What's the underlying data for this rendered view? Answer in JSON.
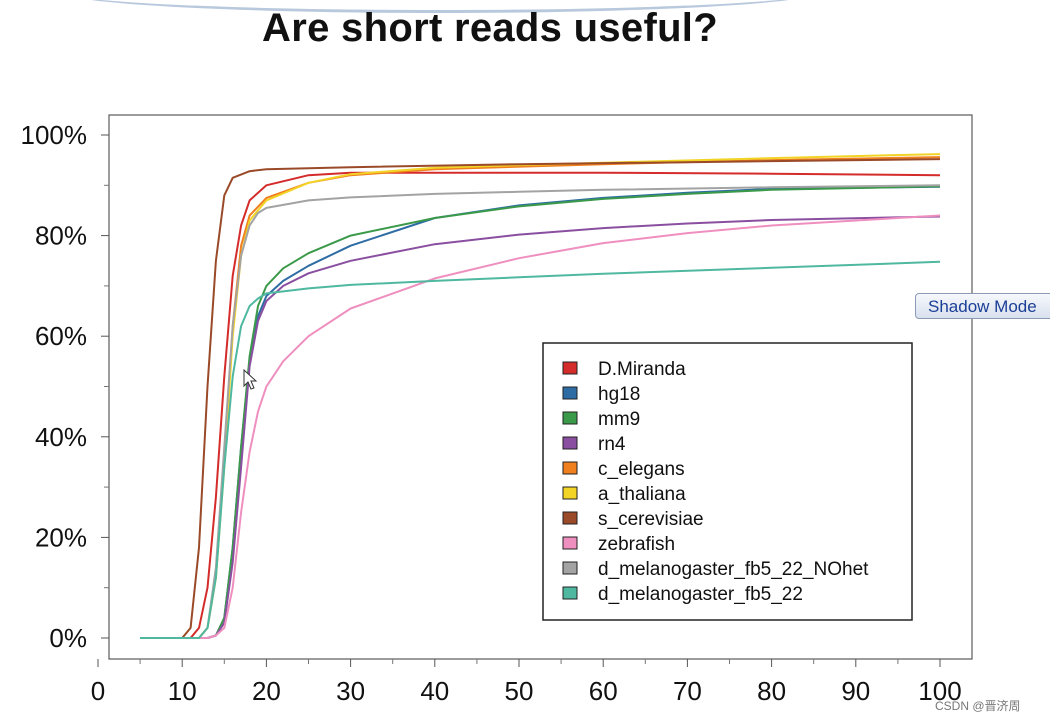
{
  "slide": {
    "title": "Are short reads useful?",
    "overlay_button": "Shadow Mode",
    "watermark": "CSDN @晋济周"
  },
  "chart_data": {
    "type": "line",
    "xlim": [
      0,
      100
    ],
    "ylim": [
      0,
      100
    ],
    "x_ticks": [
      0,
      10,
      20,
      30,
      40,
      50,
      60,
      70,
      80,
      90,
      100
    ],
    "x_tick_labels": [
      "0",
      "10",
      "20",
      "30",
      "40",
      "50",
      "60",
      "70",
      "80",
      "90",
      "100"
    ],
    "y_ticks": [
      0,
      20,
      40,
      60,
      80,
      100
    ],
    "y_tick_labels": [
      "0%",
      "20%",
      "40%",
      "60%",
      "80%",
      "100%"
    ],
    "grid": false,
    "legend_position": "bottom-right",
    "series": [
      {
        "name": "D.Miranda",
        "color": "#d42b2b",
        "points": [
          [
            5,
            0
          ],
          [
            11,
            0
          ],
          [
            12,
            2
          ],
          [
            13,
            10
          ],
          [
            14,
            28
          ],
          [
            15,
            52
          ],
          [
            16,
            72
          ],
          [
            17,
            82
          ],
          [
            18,
            87
          ],
          [
            20,
            90
          ],
          [
            25,
            92
          ],
          [
            30,
            92.5
          ],
          [
            40,
            92.5
          ],
          [
            60,
            92.5
          ],
          [
            80,
            92.3
          ],
          [
            100,
            92
          ]
        ]
      },
      {
        "name": "hg18",
        "color": "#2e6ca4",
        "points": [
          [
            5,
            0
          ],
          [
            13,
            0
          ],
          [
            14,
            0.5
          ],
          [
            15,
            4
          ],
          [
            16,
            18
          ],
          [
            17,
            38
          ],
          [
            18,
            55
          ],
          [
            19,
            64
          ],
          [
            20,
            68
          ],
          [
            22,
            71
          ],
          [
            25,
            74
          ],
          [
            30,
            78
          ],
          [
            40,
            83.5
          ],
          [
            50,
            86
          ],
          [
            60,
            87.5
          ],
          [
            70,
            88.5
          ],
          [
            80,
            89.3
          ],
          [
            100,
            89.7
          ]
        ]
      },
      {
        "name": "mm9",
        "color": "#3b9a4a",
        "points": [
          [
            5,
            0
          ],
          [
            13,
            0
          ],
          [
            14,
            0.5
          ],
          [
            15,
            4
          ],
          [
            16,
            18
          ],
          [
            17,
            38
          ],
          [
            18,
            56
          ],
          [
            19,
            66
          ],
          [
            20,
            70
          ],
          [
            22,
            73.5
          ],
          [
            25,
            76.5
          ],
          [
            30,
            80
          ],
          [
            40,
            83.5
          ],
          [
            50,
            85.8
          ],
          [
            60,
            87.3
          ],
          [
            70,
            88.3
          ],
          [
            80,
            89.1
          ],
          [
            100,
            89.8
          ]
        ]
      },
      {
        "name": "rn4",
        "color": "#8a4fa0",
        "points": [
          [
            5,
            0
          ],
          [
            13,
            0
          ],
          [
            14,
            0.5
          ],
          [
            15,
            3
          ],
          [
            16,
            15
          ],
          [
            17,
            34
          ],
          [
            18,
            54
          ],
          [
            19,
            63
          ],
          [
            20,
            67
          ],
          [
            22,
            70
          ],
          [
            25,
            72.5
          ],
          [
            30,
            75
          ],
          [
            40,
            78.3
          ],
          [
            50,
            80.2
          ],
          [
            60,
            81.5
          ],
          [
            70,
            82.4
          ],
          [
            80,
            83.1
          ],
          [
            100,
            83.8
          ]
        ]
      },
      {
        "name": "c_elegans",
        "color": "#f07f1e",
        "points": [
          [
            5,
            0
          ],
          [
            12,
            0
          ],
          [
            13,
            2
          ],
          [
            14,
            12
          ],
          [
            15,
            35
          ],
          [
            16,
            62
          ],
          [
            17,
            78
          ],
          [
            18,
            84
          ],
          [
            20,
            87.5
          ],
          [
            25,
            90.5
          ],
          [
            30,
            92
          ],
          [
            40,
            93.2
          ],
          [
            60,
            94.2
          ],
          [
            80,
            95
          ],
          [
            100,
            95.6
          ]
        ]
      },
      {
        "name": "a_thaliana",
        "color": "#f2d427",
        "points": [
          [
            5,
            0
          ],
          [
            12,
            0
          ],
          [
            13,
            2
          ],
          [
            14,
            12
          ],
          [
            15,
            34
          ],
          [
            16,
            60
          ],
          [
            17,
            76
          ],
          [
            18,
            83
          ],
          [
            20,
            87
          ],
          [
            25,
            90.5
          ],
          [
            30,
            92.2
          ],
          [
            40,
            93.5
          ],
          [
            60,
            94.5
          ],
          [
            80,
            95.4
          ],
          [
            100,
            96.2
          ]
        ]
      },
      {
        "name": "s_cerevisiae",
        "color": "#9a4a28",
        "points": [
          [
            5,
            0
          ],
          [
            10,
            0
          ],
          [
            11,
            2
          ],
          [
            12,
            18
          ],
          [
            13,
            50
          ],
          [
            14,
            75
          ],
          [
            15,
            88
          ],
          [
            16,
            91.5
          ],
          [
            18,
            92.8
          ],
          [
            20,
            93.2
          ],
          [
            30,
            93.6
          ],
          [
            50,
            94.2
          ],
          [
            70,
            94.6
          ],
          [
            100,
            95.2
          ]
        ]
      },
      {
        "name": "zebrafish",
        "color": "#ef8fbf",
        "points": [
          [
            5,
            0
          ],
          [
            13,
            0
          ],
          [
            14,
            0.5
          ],
          [
            15,
            2
          ],
          [
            16,
            10
          ],
          [
            17,
            25
          ],
          [
            18,
            37
          ],
          [
            19,
            45
          ],
          [
            20,
            50
          ],
          [
            22,
            55
          ],
          [
            25,
            60
          ],
          [
            30,
            65.5
          ],
          [
            40,
            71.5
          ],
          [
            50,
            75.5
          ],
          [
            60,
            78.5
          ],
          [
            70,
            80.5
          ],
          [
            80,
            82
          ],
          [
            100,
            84
          ]
        ]
      },
      {
        "name": "d_melanogaster_fb5_22_NOhet",
        "color": "#a3a3a3",
        "points": [
          [
            5,
            0
          ],
          [
            12,
            0
          ],
          [
            13,
            2
          ],
          [
            14,
            14
          ],
          [
            15,
            38
          ],
          [
            16,
            62
          ],
          [
            17,
            76
          ],
          [
            18,
            82
          ],
          [
            19,
            84.5
          ],
          [
            20,
            85.5
          ],
          [
            25,
            87
          ],
          [
            30,
            87.6
          ],
          [
            40,
            88.3
          ],
          [
            50,
            88.7
          ],
          [
            60,
            89.1
          ],
          [
            80,
            89.6
          ],
          [
            100,
            90
          ]
        ]
      },
      {
        "name": "d_melanogaster_fb5_22",
        "color": "#4fb8a0",
        "points": [
          [
            5,
            0
          ],
          [
            12,
            0
          ],
          [
            13,
            2
          ],
          [
            14,
            12
          ],
          [
            15,
            34
          ],
          [
            16,
            52
          ],
          [
            17,
            62
          ],
          [
            18,
            66
          ],
          [
            19,
            67.5
          ],
          [
            20,
            68.5
          ],
          [
            25,
            69.5
          ],
          [
            30,
            70.2
          ],
          [
            40,
            71
          ],
          [
            50,
            71.7
          ],
          [
            60,
            72.4
          ],
          [
            80,
            73.6
          ],
          [
            100,
            74.8
          ]
        ]
      }
    ]
  }
}
